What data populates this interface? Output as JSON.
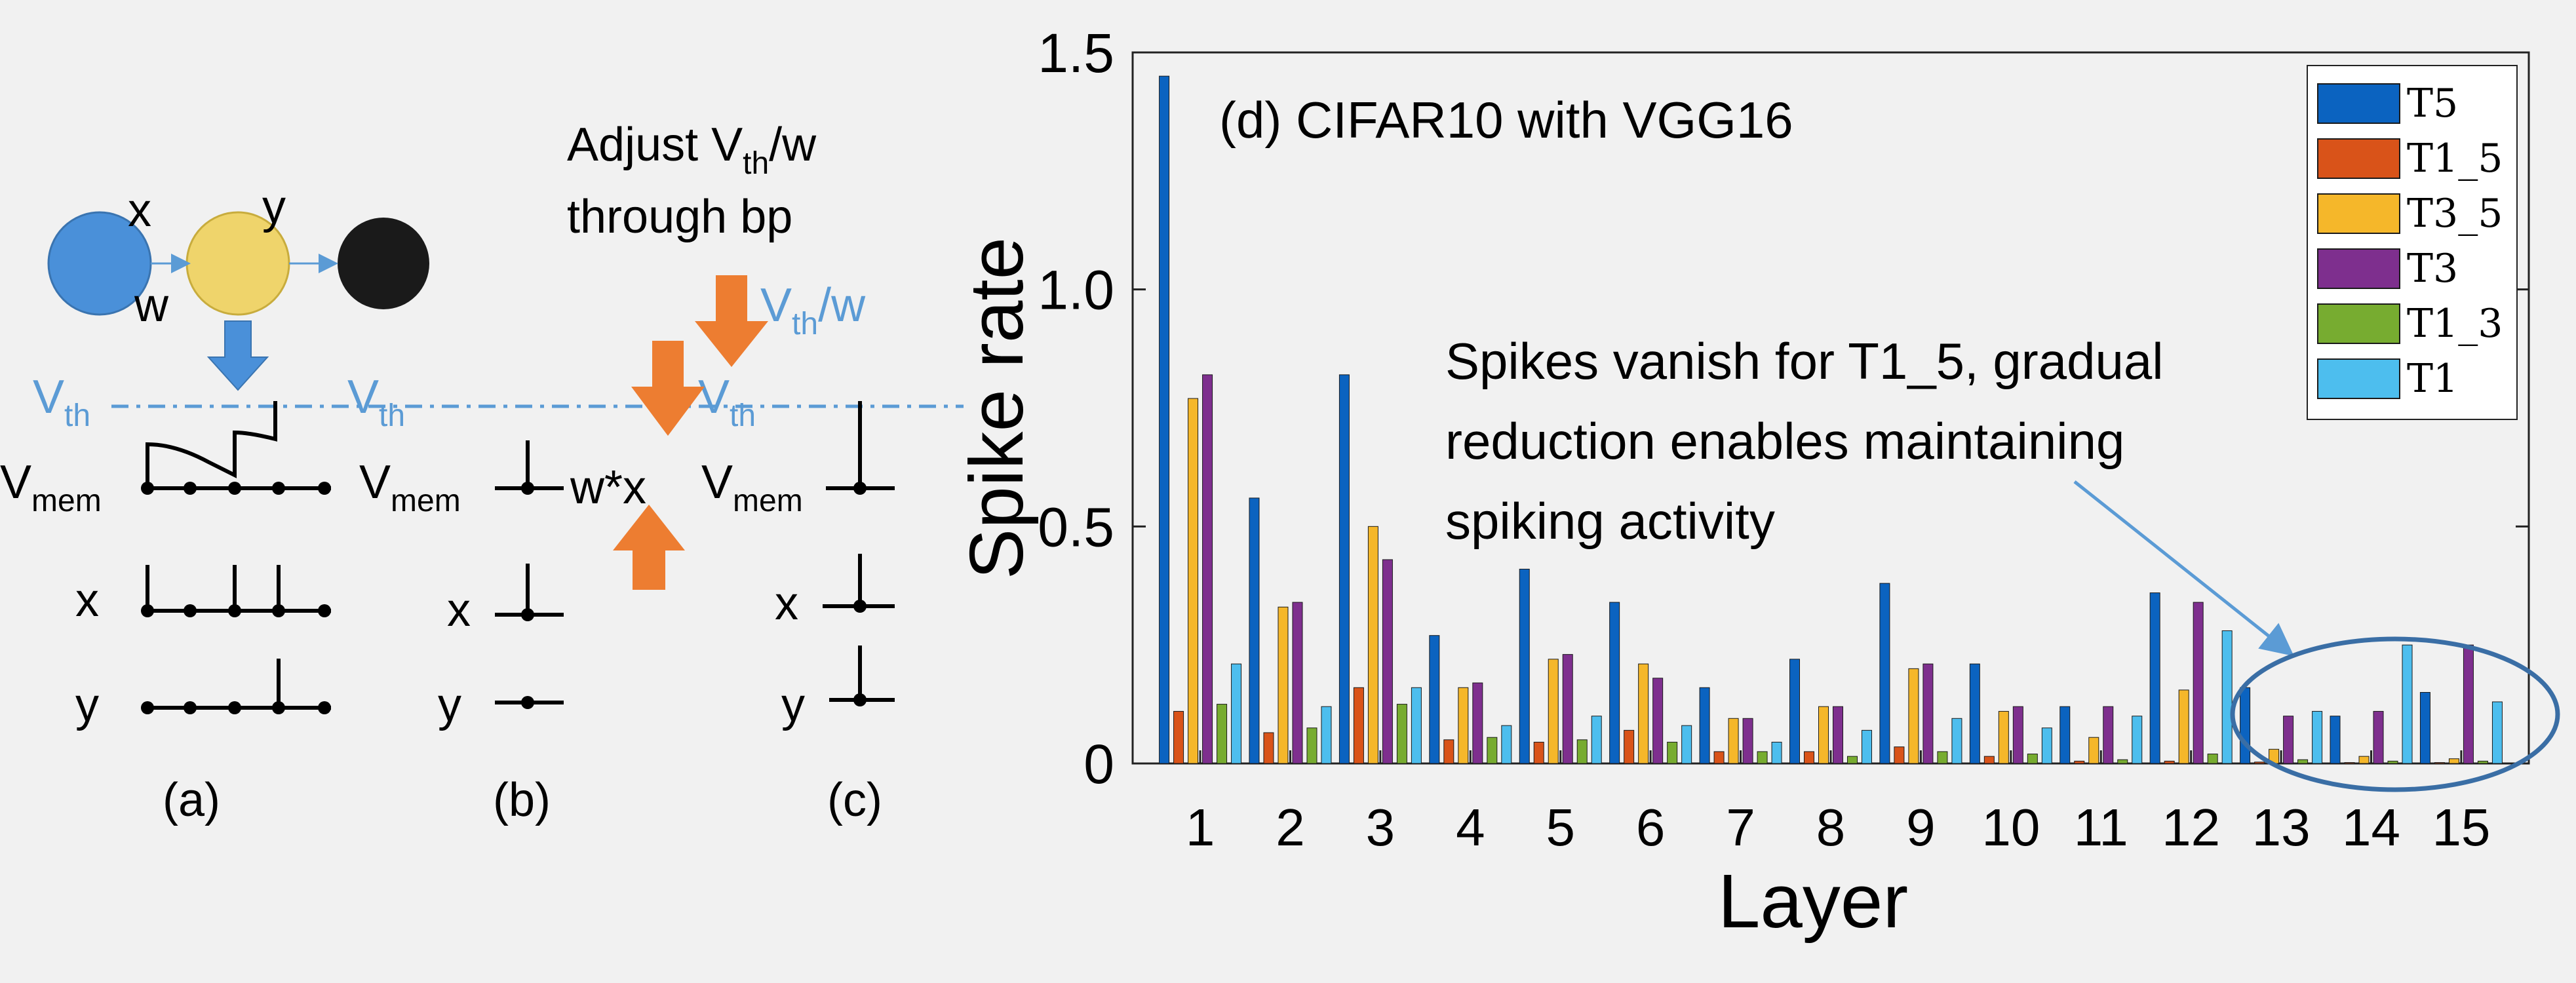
{
  "colors": {
    "blue_circle": "#4a90d9",
    "yellow_circle": "#efd46b",
    "black_circle": "#1a1a1a",
    "threshold_line": "#5b9bd5",
    "orange_arrow": "#ed7d31",
    "annotation_arrow": "#5b9bd5",
    "T5": "#0b63c0",
    "T1_5": "#d95319",
    "T3_5": "#f5b72a",
    "T3": "#7e2f8e",
    "T1_3": "#77ac30",
    "T1": "#4dbeee"
  },
  "diagram": {
    "x": "x",
    "y": "y",
    "w": "w",
    "vth": "V",
    "vth_sub": "th",
    "vmem": "V",
    "vmem_sub": "mem",
    "wx": "w*x",
    "adjust_line1_pre": "Adjust V",
    "adjust_line1_sub": "th",
    "adjust_line1_post": "/w",
    "adjust_line2": "through bp",
    "vthw_pre": "V",
    "vthw_sub": "th",
    "vthw_post": "/w",
    "panel_a": "(a)",
    "panel_b": "(b)",
    "panel_c": "(c)"
  },
  "chart_data": {
    "type": "bar",
    "title": "(d) CIFAR10 with VGG16",
    "xlabel": "Layer",
    "ylabel": "Spike rate",
    "ylim": [
      0,
      1.5
    ],
    "yticks": [
      "0",
      "0.5",
      "1.0",
      "1.5"
    ],
    "categories": [
      "1",
      "2",
      "3",
      "4",
      "5",
      "6",
      "7",
      "8",
      "9",
      "10",
      "11",
      "12",
      "13",
      "14",
      "15"
    ],
    "legend_position": "top-right",
    "annotation": [
      "Spikes vanish for T1_5, gradual",
      "reduction enables maintaining",
      "spiking activity"
    ],
    "series": [
      {
        "name": "T5",
        "color": "#0b63c0",
        "values": [
          1.45,
          0.56,
          0.82,
          0.27,
          0.41,
          0.34,
          0.16,
          0.22,
          0.38,
          0.21,
          0.12,
          0.36,
          0.16,
          0.1,
          0.15
        ]
      },
      {
        "name": "T1_5",
        "color": "#d95319",
        "values": [
          0.11,
          0.065,
          0.16,
          0.05,
          0.045,
          0.07,
          0.025,
          0.025,
          0.035,
          0.015,
          0.005,
          0.005,
          0.003,
          0.002,
          0.002
        ]
      },
      {
        "name": "T3_5",
        "color": "#f5b72a",
        "values": [
          0.77,
          0.33,
          0.5,
          0.16,
          0.22,
          0.21,
          0.095,
          0.12,
          0.2,
          0.11,
          0.055,
          0.155,
          0.03,
          0.015,
          0.01
        ]
      },
      {
        "name": "T3",
        "color": "#7e2f8e",
        "values": [
          0.82,
          0.34,
          0.43,
          0.17,
          0.23,
          0.18,
          0.095,
          0.12,
          0.21,
          0.12,
          0.12,
          0.34,
          0.1,
          0.11,
          0.25
        ]
      },
      {
        "name": "T1_3",
        "color": "#77ac30",
        "values": [
          0.125,
          0.075,
          0.125,
          0.055,
          0.05,
          0.045,
          0.025,
          0.015,
          0.025,
          0.02,
          0.008,
          0.02,
          0.008,
          0.005,
          0.005
        ]
      },
      {
        "name": "T1",
        "color": "#4dbeee",
        "values": [
          0.21,
          0.12,
          0.16,
          0.08,
          0.1,
          0.08,
          0.045,
          0.07,
          0.095,
          0.075,
          0.1,
          0.28,
          0.11,
          0.25,
          0.13
        ]
      }
    ]
  }
}
